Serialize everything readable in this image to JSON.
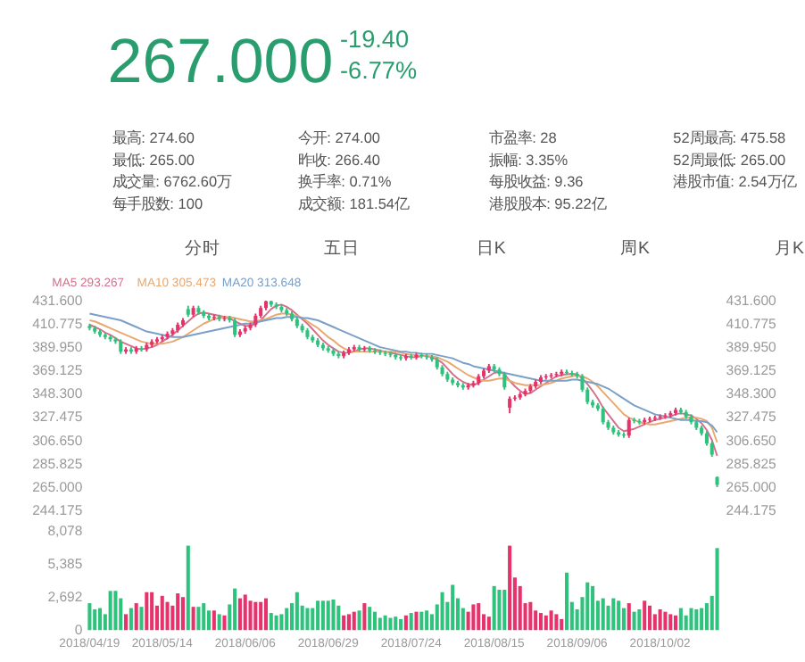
{
  "chart_data": [
    {
      "type": "other",
      "annotations": [
        "267.000",
        "-19.40",
        "-6.77%",
        "最高: 274.60",
        "今开: 274.00",
        "市盈率: 28",
        "52周最高: 475.58",
        "最低: 265.00",
        "昨收: 266.40",
        "振幅: 3.35%",
        "52周最低: 265.00",
        "成交量: 6762.60万",
        "换手率: 0.71%",
        "每股收益: 9.36",
        "港股市值: 2.54万亿",
        "每手股数: 100",
        "成交额: 181.54亿",
        "港股股本: 95.22亿",
        "分时",
        "五日",
        "日K",
        "周K",
        "月K"
      ]
    },
    {
      "type": "candlestick",
      "categories": [
        "2018/04/19",
        null,
        null,
        null,
        null,
        null,
        null,
        null,
        null,
        null,
        null,
        null,
        null,
        null,
        "2018/05/14",
        null,
        null,
        null,
        null,
        null,
        null,
        null,
        null,
        null,
        null,
        null,
        null,
        null,
        null,
        null,
        "2018/06/06",
        null,
        null,
        null,
        null,
        null,
        null,
        null,
        null,
        null,
        null,
        null,
        null,
        null,
        null,
        null,
        "2018/06/29",
        null,
        null,
        null,
        null,
        null,
        null,
        null,
        null,
        null,
        null,
        null,
        null,
        null,
        null,
        null,
        "2018/07/24",
        null,
        null,
        null,
        null,
        null,
        null,
        null,
        null,
        null,
        null,
        null,
        null,
        null,
        null,
        null,
        "2018/08/15",
        null,
        null,
        null,
        null,
        null,
        null,
        null,
        null,
        null,
        null,
        null,
        null,
        null,
        null,
        null,
        "2018/09/06",
        null,
        null,
        null,
        null,
        null,
        null,
        null,
        null,
        null,
        null,
        null,
        null,
        null,
        null,
        null,
        "2018/10/02",
        null,
        null,
        null,
        null,
        null,
        null,
        null,
        null,
        null,
        null,
        null
      ],
      "ohlc": [
        [
          409,
          411,
          405,
          407
        ],
        [
          407,
          409,
          402,
          404
        ],
        [
          404,
          406,
          399,
          401
        ],
        [
          401,
          403,
          397,
          399
        ],
        [
          399,
          401,
          395,
          397
        ],
        [
          397,
          399,
          393,
          395
        ],
        [
          395,
          397,
          384,
          386
        ],
        [
          386,
          390,
          384,
          388
        ],
        [
          388,
          390,
          384,
          386
        ],
        [
          386,
          391,
          384,
          389
        ],
        [
          389,
          391,
          386,
          388
        ],
        [
          388,
          394,
          386,
          392
        ],
        [
          392,
          397,
          390,
          395
        ],
        [
          395,
          399,
          393,
          397
        ],
        [
          397,
          401,
          395,
          399
        ],
        [
          399,
          404,
          397,
          402
        ],
        [
          402,
          407,
          400,
          405
        ],
        [
          405,
          412,
          403,
          410
        ],
        [
          410,
          416,
          408,
          414
        ],
        [
          424,
          427,
          417,
          419
        ],
        [
          419,
          427,
          417,
          425
        ],
        [
          425,
          427,
          419,
          421
        ],
        [
          421,
          423,
          416,
          418
        ],
        [
          418,
          420,
          414,
          416
        ],
        [
          416,
          419,
          414,
          417
        ],
        [
          417,
          419,
          413,
          415
        ],
        [
          415,
          418,
          413,
          416
        ],
        [
          416,
          418,
          412,
          414
        ],
        [
          414,
          416,
          399,
          401
        ],
        [
          401,
          406,
          399,
          404
        ],
        [
          404,
          409,
          402,
          407
        ],
        [
          407,
          412,
          405,
          410
        ],
        [
          410,
          420,
          408,
          418
        ],
        [
          418,
          427,
          416,
          425
        ],
        [
          425,
          431.5,
          423,
          431
        ],
        [
          431,
          431.5,
          426,
          428
        ],
        [
          428,
          430,
          424,
          426
        ],
        [
          426,
          428,
          421,
          423
        ],
        [
          423,
          425,
          418,
          420
        ],
        [
          420,
          422,
          413,
          415
        ],
        [
          415,
          417,
          407,
          409
        ],
        [
          409,
          411,
          403,
          405
        ],
        [
          405,
          407,
          397,
          399
        ],
        [
          399,
          401,
          394,
          396
        ],
        [
          396,
          398,
          390,
          392
        ],
        [
          392,
          394,
          387,
          389
        ],
        [
          389,
          391,
          385,
          387
        ],
        [
          387,
          389,
          382,
          384
        ],
        [
          384,
          386,
          380,
          382
        ],
        [
          382,
          387,
          380,
          385
        ],
        [
          385,
          390,
          383,
          388
        ],
        [
          388,
          392,
          386,
          390
        ],
        [
          390,
          392,
          386,
          388
        ],
        [
          388,
          391,
          386,
          389
        ],
        [
          389,
          391,
          385,
          387
        ],
        [
          387,
          389,
          384,
          386
        ],
        [
          386,
          388,
          383,
          385
        ],
        [
          385,
          387,
          382,
          384
        ],
        [
          384,
          386,
          381,
          383
        ],
        [
          383,
          385,
          379,
          381
        ],
        [
          381,
          383,
          378,
          380
        ],
        [
          380,
          384,
          378,
          382
        ],
        [
          382,
          384,
          379,
          381
        ],
        [
          381,
          385,
          379,
          383
        ],
        [
          383,
          385,
          380,
          382
        ],
        [
          382,
          384,
          379,
          381
        ],
        [
          381,
          383,
          377,
          379
        ],
        [
          379,
          381,
          370,
          372
        ],
        [
          372,
          374,
          364,
          366
        ],
        [
          366,
          368,
          359,
          361
        ],
        [
          361,
          363,
          356,
          358
        ],
        [
          358,
          360,
          354,
          356
        ],
        [
          356,
          358,
          352,
          354
        ],
        [
          354,
          358,
          352,
          356
        ],
        [
          356,
          360,
          354,
          358
        ],
        [
          358,
          366,
          356,
          364
        ],
        [
          364,
          371,
          362,
          369
        ],
        [
          369,
          375,
          367,
          373
        ],
        [
          373,
          375,
          368,
          370
        ],
        [
          370,
          372,
          364,
          366
        ],
        [
          366,
          368,
          352,
          354
        ],
        [
          336,
          346,
          331,
          344
        ],
        [
          344,
          347,
          342,
          345
        ],
        [
          345,
          350,
          343,
          348
        ],
        [
          348,
          353,
          346,
          351
        ],
        [
          351,
          357,
          349,
          355
        ],
        [
          355,
          361,
          353,
          359
        ],
        [
          359,
          365,
          357,
          363
        ],
        [
          363,
          366,
          361,
          364
        ],
        [
          364,
          367,
          362,
          365
        ],
        [
          365,
          368,
          363,
          366
        ],
        [
          366,
          370,
          364,
          368
        ],
        [
          368,
          370,
          365,
          367
        ],
        [
          367,
          369,
          364,
          366
        ],
        [
          366,
          368,
          362,
          364
        ],
        [
          364,
          366,
          350,
          352
        ],
        [
          352,
          354,
          339,
          341
        ],
        [
          341,
          343,
          336,
          338
        ],
        [
          338,
          340,
          333,
          335
        ],
        [
          335,
          337,
          321,
          323
        ],
        [
          323,
          325,
          316,
          318
        ],
        [
          318,
          320,
          312,
          314
        ],
        [
          314,
          316,
          310,
          312
        ],
        [
          312,
          314,
          309,
          311
        ],
        [
          311,
          327,
          309,
          325
        ],
        [
          325,
          327,
          322,
          324
        ],
        [
          324,
          326,
          321,
          323
        ],
        [
          323,
          327,
          321,
          325
        ],
        [
          325,
          328,
          323,
          326
        ],
        [
          326,
          329,
          324,
          327
        ],
        [
          327,
          330,
          325,
          328
        ],
        [
          328,
          331,
          326,
          329
        ],
        [
          329,
          333,
          327,
          331
        ],
        [
          331,
          336,
          329,
          334
        ],
        [
          334,
          336,
          330,
          332
        ],
        [
          332,
          334,
          326,
          328
        ],
        [
          328,
          330,
          321,
          323
        ],
        [
          323,
          325,
          316,
          318
        ],
        [
          318,
          320,
          311,
          313
        ],
        [
          313,
          315,
          302,
          304
        ],
        [
          304,
          306,
          292,
          294
        ],
        [
          274,
          274.6,
          265,
          267
        ]
      ],
      "colors": [
        "#2fc27c",
        "#2fc27c",
        "#2fc27c",
        "#2fc27c",
        "#2fc27c",
        "#2fc27c",
        "#2fc27c",
        "#e6336b",
        "#2fc27c",
        "#e6336b",
        "#2fc27c",
        "#e6336b",
        "#e6336b",
        "#e6336b",
        "#e6336b",
        "#e6336b",
        "#e6336b",
        "#e6336b",
        "#e6336b",
        "#2fc27c",
        "#e6336b",
        "#2fc27c",
        "#2fc27c",
        "#2fc27c",
        "#e6336b",
        "#2fc27c",
        "#e6336b",
        "#2fc27c",
        "#2fc27c",
        "#e6336b",
        "#e6336b",
        "#e6336b",
        "#e6336b",
        "#e6336b",
        "#e6336b",
        "#2fc27c",
        "#2fc27c",
        "#2fc27c",
        "#2fc27c",
        "#2fc27c",
        "#2fc27c",
        "#2fc27c",
        "#2fc27c",
        "#2fc27c",
        "#2fc27c",
        "#2fc27c",
        "#2fc27c",
        "#2fc27c",
        "#2fc27c",
        "#e6336b",
        "#e6336b",
        "#e6336b",
        "#2fc27c",
        "#e6336b",
        "#2fc27c",
        "#2fc27c",
        "#2fc27c",
        "#2fc27c",
        "#2fc27c",
        "#2fc27c",
        "#2fc27c",
        "#e6336b",
        "#2fc27c",
        "#e6336b",
        "#2fc27c",
        "#2fc27c",
        "#2fc27c",
        "#2fc27c",
        "#2fc27c",
        "#2fc27c",
        "#2fc27c",
        "#2fc27c",
        "#2fc27c",
        "#e6336b",
        "#e6336b",
        "#e6336b",
        "#e6336b",
        "#e6336b",
        "#2fc27c",
        "#2fc27c",
        "#2fc27c",
        "#e6336b",
        "#e6336b",
        "#e6336b",
        "#e6336b",
        "#e6336b",
        "#e6336b",
        "#e6336b",
        "#e6336b",
        "#e6336b",
        "#e6336b",
        "#e6336b",
        "#2fc27c",
        "#2fc27c",
        "#2fc27c",
        "#2fc27c",
        "#2fc27c",
        "#2fc27c",
        "#2fc27c",
        "#2fc27c",
        "#2fc27c",
        "#2fc27c",
        "#2fc27c",
        "#2fc27c",
        "#e6336b",
        "#2fc27c",
        "#2fc27c",
        "#e6336b",
        "#e6336b",
        "#e6336b",
        "#e6336b",
        "#e6336b",
        "#e6336b",
        "#e6336b",
        "#2fc27c",
        "#2fc27c",
        "#2fc27c",
        "#2fc27c",
        "#2fc27c",
        "#2fc27c",
        "#2fc27c",
        "#2fc27c"
      ],
      "ylim": [
        244.175,
        431.6
      ],
      "yticks": [
        {
          "value": 244.175,
          "label": "244.175"
        },
        {
          "value": 265,
          "label": "265.000"
        },
        {
          "value": 285.825,
          "label": "285.825"
        },
        {
          "value": 306.65,
          "label": "306.650"
        },
        {
          "value": 327.475,
          "label": "327.475"
        },
        {
          "value": 348.3,
          "label": "348.300"
        },
        {
          "value": 369.125,
          "label": "369.125"
        },
        {
          "value": 389.95,
          "label": "389.950"
        },
        {
          "value": 410.775,
          "label": "410.775"
        },
        {
          "value": 431.6,
          "label": "431.600"
        }
      ],
      "y2lim": [
        244.175,
        431.6
      ],
      "y2ticks": [
        {
          "value": 244.175,
          "label": "244.175"
        },
        {
          "value": 265,
          "label": "265.000"
        },
        {
          "value": 285.825,
          "label": "285.825"
        },
        {
          "value": 306.65,
          "label": "306.650"
        },
        {
          "value": 327.475,
          "label": "327.475"
        },
        {
          "value": 348.3,
          "label": "348.300"
        },
        {
          "value": 369.125,
          "label": "369.125"
        },
        {
          "value": 389.95,
          "label": "389.950"
        },
        {
          "value": 410.775,
          "label": "410.775"
        },
        {
          "value": 431.6,
          "label": "431.600"
        }
      ],
      "tick_labels": "y",
      "series": [
        {
          "name": "MA5 293.267",
          "type": "line",
          "color": "#d4708c",
          "values": [
            410,
            408,
            406,
            403,
            401,
            398,
            395,
            393,
            391,
            389,
            388,
            389,
            390,
            392,
            395,
            398,
            401,
            405,
            409,
            413,
            417,
            420,
            421,
            420,
            419,
            418,
            417,
            416,
            413,
            411,
            409,
            409,
            411,
            414,
            419,
            424,
            427,
            428,
            426,
            423,
            419,
            415,
            411,
            406,
            401,
            396,
            392,
            389,
            386,
            385,
            385,
            386,
            388,
            389,
            389,
            388,
            387,
            386,
            385,
            384,
            383,
            382,
            381,
            381,
            382,
            382,
            381,
            379,
            376,
            371,
            366,
            362,
            359,
            357,
            356,
            358,
            361,
            364,
            367,
            368,
            366,
            360,
            355,
            351,
            348,
            349,
            352,
            355,
            358,
            361,
            364,
            365,
            366,
            366,
            366,
            362,
            357,
            351,
            344,
            336,
            330,
            324,
            318,
            315,
            316,
            317,
            319,
            321,
            323,
            325,
            326,
            327,
            328,
            330,
            331,
            330,
            329,
            326,
            322,
            316,
            307,
            293
          ]
        },
        {
          "name": "MA10 305.473",
          "type": "line",
          "color": "#e8a870",
          "values": [
            414,
            413,
            411,
            409,
            407,
            405,
            403,
            401,
            399,
            397,
            395,
            394,
            393,
            393,
            393,
            394,
            395,
            397,
            399,
            402,
            405,
            408,
            411,
            413,
            415,
            416,
            417,
            417,
            416,
            415,
            414,
            413,
            413,
            414,
            415,
            417,
            419,
            420,
            420,
            419,
            418,
            416,
            413,
            410,
            407,
            403,
            399,
            396,
            392,
            389,
            387,
            386,
            386,
            386,
            386,
            386,
            386,
            386,
            386,
            386,
            385,
            384,
            383,
            383,
            382,
            382,
            382,
            381,
            379,
            377,
            374,
            371,
            368,
            365,
            363,
            361,
            360,
            360,
            361,
            362,
            362,
            360,
            358,
            357,
            356,
            356,
            356,
            356,
            357,
            358,
            360,
            362,
            363,
            364,
            365,
            364,
            362,
            359,
            355,
            350,
            345,
            340,
            335,
            330,
            327,
            325,
            323,
            322,
            321,
            321,
            322,
            323,
            324,
            325,
            326,
            327,
            327,
            327,
            326,
            324,
            318,
            305
          ]
        },
        {
          "name": "MA20 313.648",
          "type": "line",
          "color": "#7aa0c8",
          "values": [
            420,
            419,
            418,
            417,
            416,
            415,
            414,
            412,
            410,
            408,
            406,
            404,
            403,
            402,
            401,
            400,
            399,
            399,
            399,
            400,
            401,
            402,
            403,
            404,
            405,
            406,
            407,
            408,
            409,
            410,
            411,
            411,
            412,
            413,
            414,
            415,
            416,
            416,
            417,
            417,
            417,
            416,
            416,
            415,
            414,
            412,
            410,
            408,
            406,
            404,
            402,
            400,
            398,
            396,
            394,
            392,
            390,
            389,
            388,
            387,
            386,
            386,
            385,
            385,
            384,
            384,
            384,
            383,
            382,
            381,
            380,
            378,
            376,
            375,
            373,
            372,
            371,
            370,
            369,
            368,
            367,
            366,
            365,
            364,
            363,
            362,
            361,
            360,
            360,
            360,
            360,
            360,
            360,
            361,
            361,
            360,
            359,
            358,
            357,
            355,
            353,
            350,
            347,
            344,
            341,
            338,
            336,
            334,
            332,
            330,
            329,
            328,
            327,
            326,
            325,
            325,
            325,
            324,
            324,
            323,
            320,
            314
          ]
        }
      ]
    },
    {
      "type": "bar",
      "categories": [
        "2018/04/19",
        null,
        null,
        null,
        null,
        null,
        null,
        null,
        null,
        null,
        null,
        null,
        null,
        null,
        "2018/05/14",
        null,
        null,
        null,
        null,
        null,
        null,
        null,
        null,
        null,
        null,
        null,
        null,
        null,
        null,
        null,
        "2018/06/06",
        null,
        null,
        null,
        null,
        null,
        null,
        null,
        null,
        null,
        null,
        null,
        null,
        null,
        null,
        null,
        "2018/06/29",
        null,
        null,
        null,
        null,
        null,
        null,
        null,
        null,
        null,
        null,
        null,
        null,
        null,
        null,
        null,
        "2018/07/24",
        null,
        null,
        null,
        null,
        null,
        null,
        null,
        null,
        null,
        null,
        null,
        null,
        null,
        null,
        null,
        "2018/08/15",
        null,
        null,
        null,
        null,
        null,
        null,
        null,
        null,
        null,
        null,
        null,
        null,
        null,
        null,
        null,
        "2018/09/06",
        null,
        null,
        null,
        null,
        null,
        null,
        null,
        null,
        null,
        null,
        null,
        null,
        null,
        null,
        null,
        "2018/10/02",
        null,
        null,
        null,
        null,
        null,
        null,
        null,
        null,
        null,
        null,
        null
      ],
      "values": [
        2200,
        1700,
        1800,
        1300,
        3200,
        3200,
        2600,
        1300,
        1800,
        2200,
        1900,
        3100,
        3100,
        2000,
        2800,
        2300,
        2000,
        3000,
        2700,
        6900,
        1900,
        1900,
        2200,
        1600,
        1600,
        1300,
        1200,
        2100,
        3400,
        2600,
        2900,
        2400,
        2300,
        2300,
        2600,
        1400,
        1200,
        1300,
        1800,
        2200,
        3100,
        2000,
        1800,
        1800,
        2400,
        2400,
        2400,
        2500,
        2000,
        1200,
        1300,
        1500,
        1600,
        2200,
        1900,
        1500,
        1000,
        1200,
        1000,
        1100,
        900,
        1200,
        1400,
        1500,
        1500,
        1600,
        1300,
        2100,
        3100,
        2300,
        3700,
        2600,
        1800,
        1500,
        2100,
        2200,
        1300,
        1100,
        3600,
        3300,
        3300,
        6900,
        4300,
        3600,
        2200,
        2300,
        1600,
        1400,
        1200,
        1600,
        1300,
        900,
        4700,
        2300,
        1700,
        2700,
        3900,
        3600,
        2400,
        2600,
        2000,
        2600,
        2400,
        1800,
        2200,
        1500,
        1700,
        2400,
        2000,
        1300,
        1700,
        1500,
        1300,
        1200,
        1800,
        1200,
        1800,
        1700,
        1800,
        2200,
        2800,
        6700
      ],
      "colors": [
        "#2fc27c",
        "#2fc27c",
        "#2fc27c",
        "#2fc27c",
        "#2fc27c",
        "#2fc27c",
        "#2fc27c",
        "#e6336b",
        "#2fc27c",
        "#e6336b",
        "#2fc27c",
        "#e6336b",
        "#e6336b",
        "#e6336b",
        "#e6336b",
        "#e6336b",
        "#e6336b",
        "#e6336b",
        "#e6336b",
        "#2fc27c",
        "#e6336b",
        "#2fc27c",
        "#2fc27c",
        "#2fc27c",
        "#e6336b",
        "#2fc27c",
        "#e6336b",
        "#2fc27c",
        "#2fc27c",
        "#e6336b",
        "#e6336b",
        "#e6336b",
        "#e6336b",
        "#e6336b",
        "#e6336b",
        "#2fc27c",
        "#2fc27c",
        "#2fc27c",
        "#2fc27c",
        "#2fc27c",
        "#2fc27c",
        "#2fc27c",
        "#2fc27c",
        "#2fc27c",
        "#2fc27c",
        "#2fc27c",
        "#2fc27c",
        "#2fc27c",
        "#2fc27c",
        "#e6336b",
        "#e6336b",
        "#e6336b",
        "#2fc27c",
        "#e6336b",
        "#2fc27c",
        "#2fc27c",
        "#2fc27c",
        "#2fc27c",
        "#2fc27c",
        "#2fc27c",
        "#2fc27c",
        "#e6336b",
        "#2fc27c",
        "#e6336b",
        "#2fc27c",
        "#2fc27c",
        "#2fc27c",
        "#2fc27c",
        "#2fc27c",
        "#2fc27c",
        "#2fc27c",
        "#2fc27c",
        "#2fc27c",
        "#e6336b",
        "#e6336b",
        "#e6336b",
        "#e6336b",
        "#e6336b",
        "#2fc27c",
        "#2fc27c",
        "#2fc27c",
        "#e6336b",
        "#e6336b",
        "#e6336b",
        "#e6336b",
        "#e6336b",
        "#e6336b",
        "#e6336b",
        "#e6336b",
        "#e6336b",
        "#e6336b",
        "#e6336b",
        "#2fc27c",
        "#2fc27c",
        "#2fc27c",
        "#2fc27c",
        "#2fc27c",
        "#2fc27c",
        "#2fc27c",
        "#2fc27c",
        "#2fc27c",
        "#2fc27c",
        "#2fc27c",
        "#2fc27c",
        "#e6336b",
        "#2fc27c",
        "#2fc27c",
        "#e6336b",
        "#e6336b",
        "#e6336b",
        "#e6336b",
        "#e6336b",
        "#e6336b",
        "#e6336b",
        "#2fc27c",
        "#2fc27c",
        "#2fc27c",
        "#2fc27c",
        "#2fc27c",
        "#2fc27c",
        "#2fc27c",
        "#2fc27c"
      ],
      "ylim": [
        0,
        8078
      ],
      "yticks": [
        {
          "value": 0,
          "label": "0"
        },
        {
          "value": 2692,
          "label": "2,692"
        },
        {
          "value": 5385,
          "label": "5,385"
        },
        {
          "value": 8078,
          "label": "8,078"
        }
      ]
    }
  ]
}
